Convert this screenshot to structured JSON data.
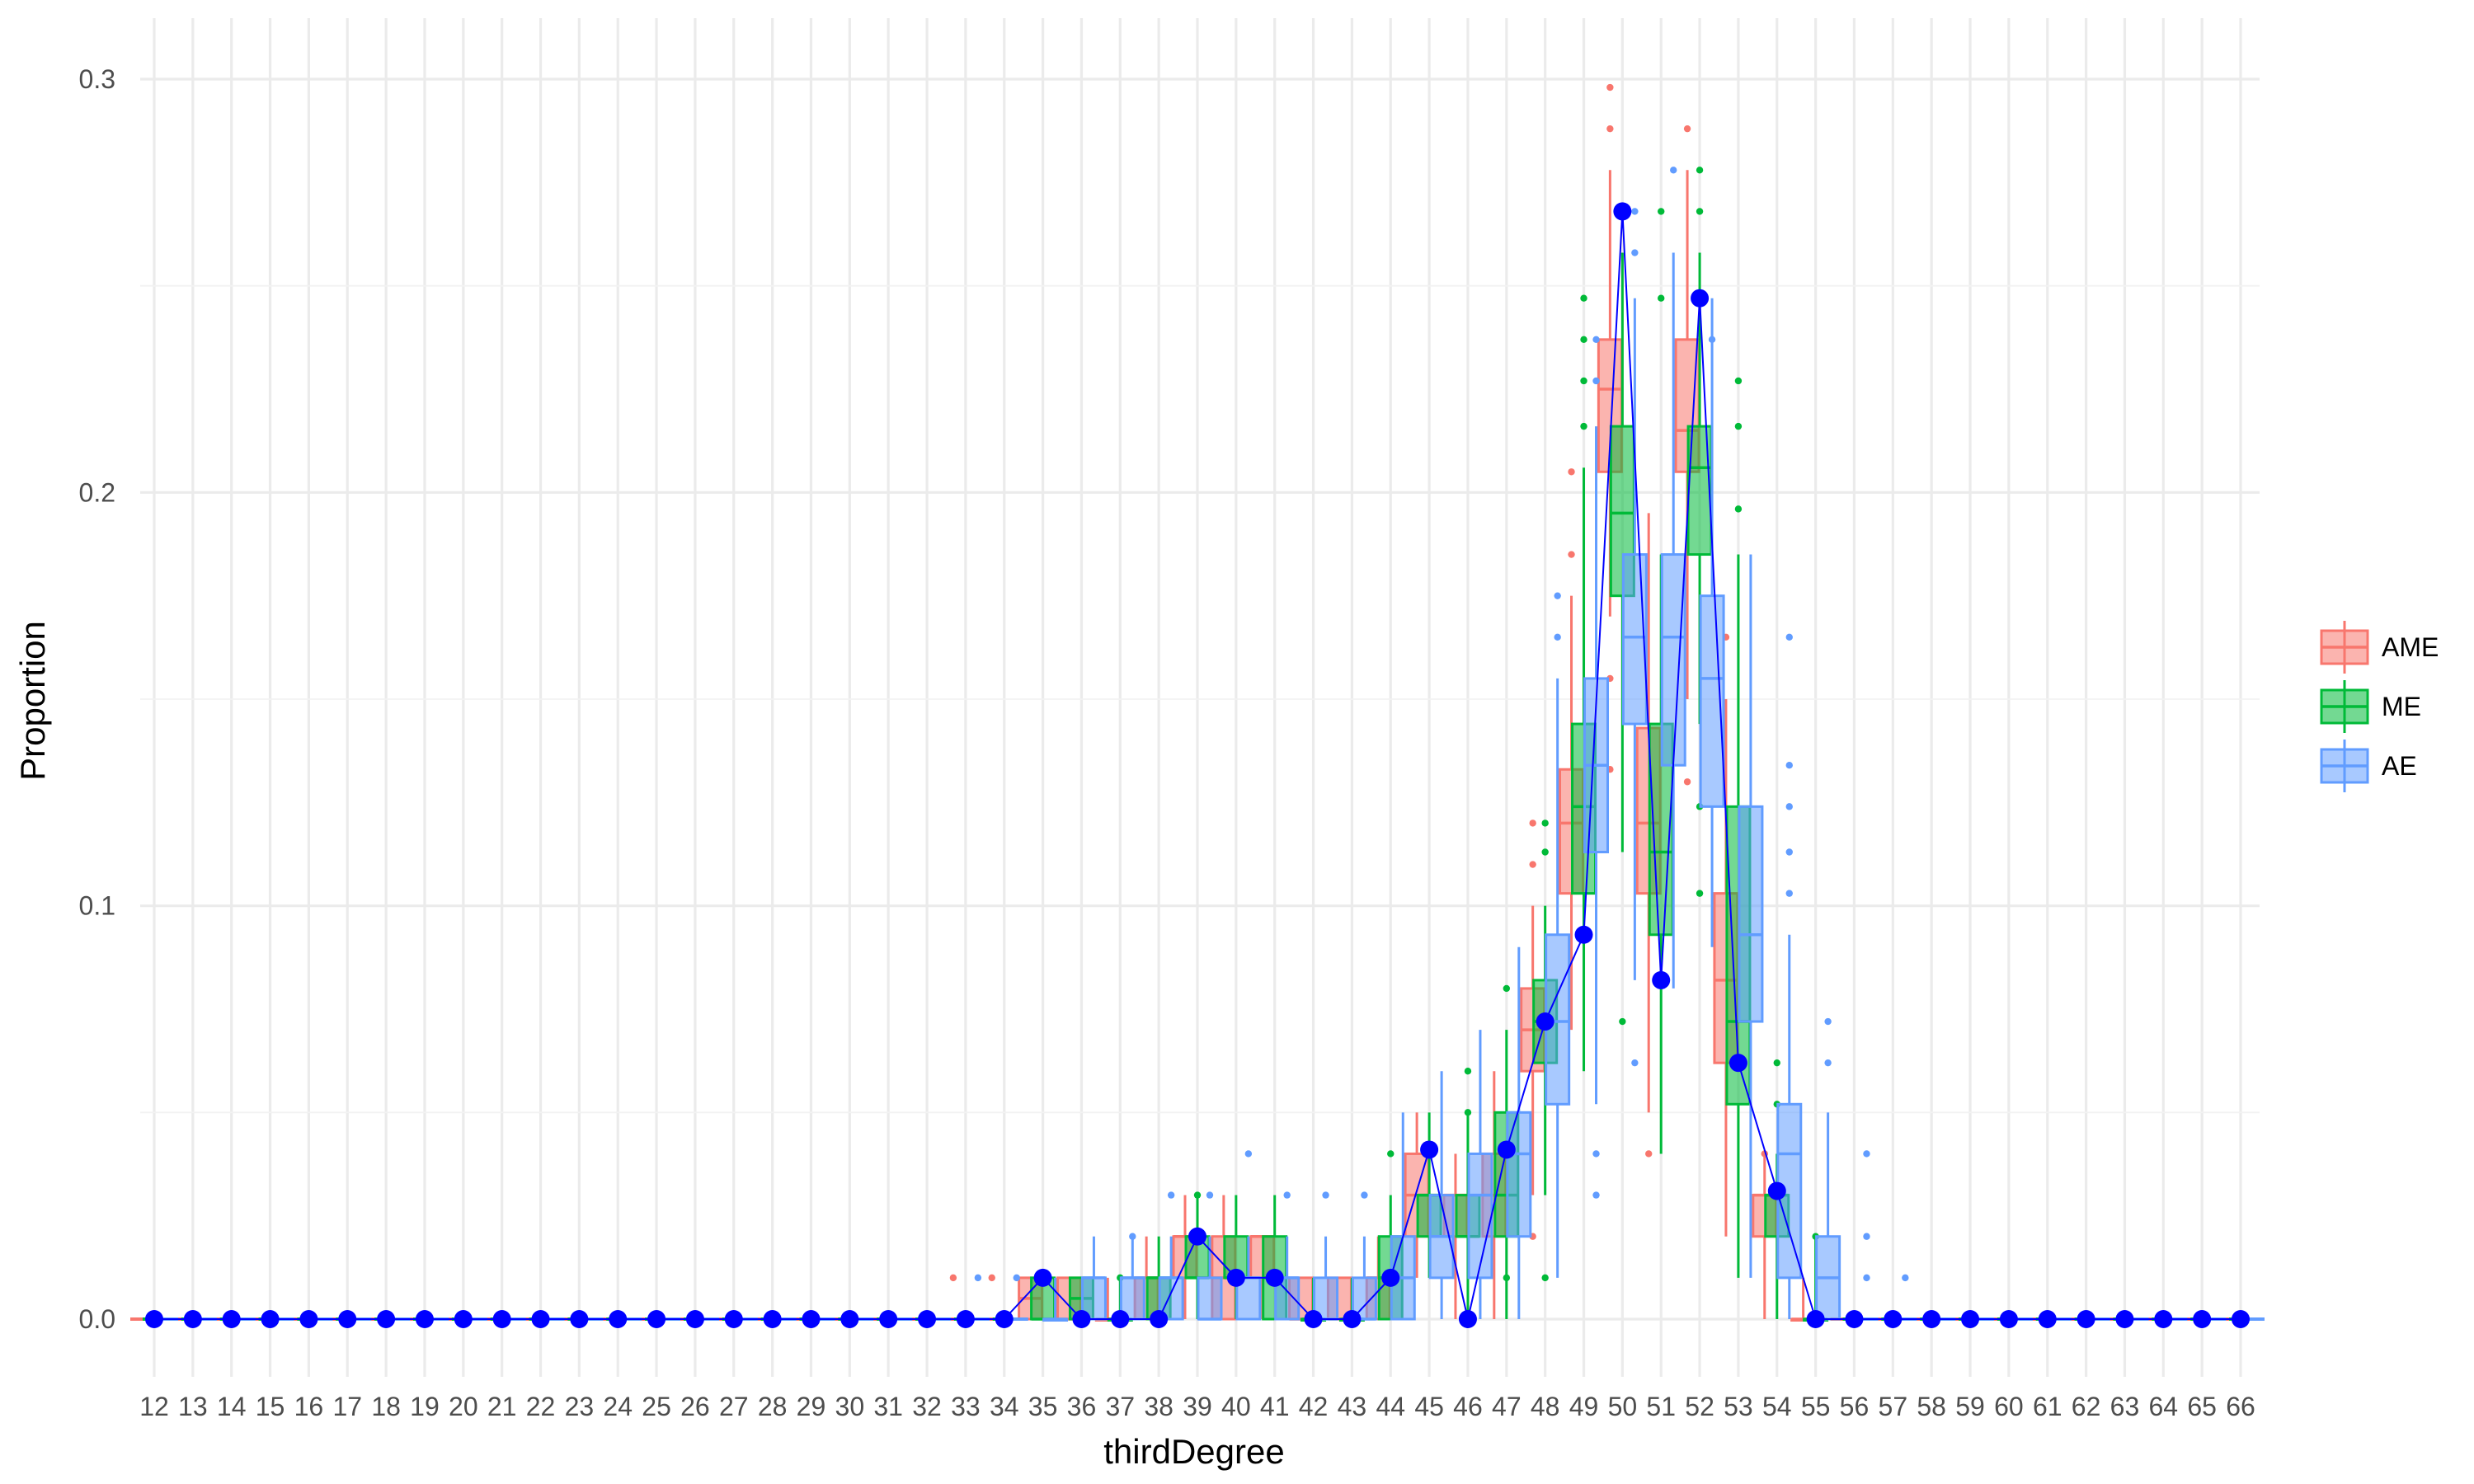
{
  "chart_data": {
    "type": "box",
    "xlabel": "thirdDegree",
    "ylabel": "Proportion",
    "x": [
      12,
      13,
      14,
      15,
      16,
      17,
      18,
      19,
      20,
      21,
      22,
      23,
      24,
      25,
      26,
      27,
      28,
      29,
      30,
      31,
      32,
      33,
      34,
      35,
      36,
      37,
      38,
      39,
      40,
      41,
      42,
      43,
      44,
      45,
      46,
      47,
      48,
      49,
      50,
      51,
      52,
      53,
      54,
      55,
      56,
      57,
      58,
      59,
      60,
      61,
      62,
      63,
      64,
      65,
      66
    ],
    "x_tick_labels": [
      "12",
      "13",
      "14",
      "15",
      "16",
      "17",
      "18",
      "19",
      "20",
      "21",
      "22",
      "23",
      "24",
      "25",
      "26",
      "27",
      "28",
      "29",
      "30",
      "31",
      "32",
      "33",
      "34",
      "35",
      "36",
      "37",
      "38",
      "39",
      "40",
      "41",
      "42",
      "43",
      "44",
      "45",
      "46",
      "47",
      "48",
      "49",
      "50",
      "51",
      "52",
      "53",
      "54",
      "55",
      "56",
      "57",
      "58",
      "59",
      "60",
      "61",
      "62",
      "63",
      "64",
      "65",
      "66"
    ],
    "y_ticks": [
      0.0,
      0.1,
      0.2,
      0.3
    ],
    "y_tick_labels": [
      "0.0",
      "0.1",
      "0.2",
      "0.3"
    ],
    "ylim": [
      -0.014,
      0.315
    ],
    "grid": true,
    "legend_position": "right",
    "legend_title": "",
    "series": [
      {
        "name": "AME",
        "color": "#F8766D",
        "boxes": {
          "35": [
            0,
            0,
            0.005,
            0.01,
            0.01
          ],
          "36": [
            0,
            0,
            0,
            0.01,
            0.01
          ],
          "37": [
            0,
            0,
            0,
            0,
            0.01
          ],
          "38": [
            0,
            0,
            0.01,
            0.01,
            0.02
          ],
          "39": [
            0,
            0.01,
            0.02,
            0.02,
            0.03
          ],
          "40": [
            0,
            0,
            0.01,
            0.02,
            0.03
          ],
          "41": [
            0,
            0.01,
            0.02,
            0.02,
            0.02
          ],
          "42": [
            0,
            0,
            0,
            0.01,
            0.01
          ],
          "43": [
            0,
            0,
            0,
            0.01,
            0.01
          ],
          "44": [
            0,
            0,
            0.01,
            0.01,
            0.02
          ],
          "45": [
            0.01,
            0.02,
            0.03,
            0.04,
            0.05
          ],
          "46": [
            0,
            0.02,
            0.03,
            0.03,
            0.04
          ],
          "47": [
            0,
            0.02,
            0.03,
            0.04,
            0.06
          ],
          "48": [
            0.03,
            0.06,
            0.07,
            0.08,
            0.1
          ],
          "49": [
            0.07,
            0.103,
            0.12,
            0.133,
            0.175
          ],
          "50": [
            0.17,
            0.205,
            0.225,
            0.237,
            0.278
          ],
          "51": [
            0.05,
            0.103,
            0.12,
            0.143,
            0.195
          ],
          "52": [
            0.15,
            0.205,
            0.215,
            0.237,
            0.278
          ],
          "53": [
            0.02,
            0.062,
            0.082,
            0.103,
            0.15
          ],
          "54": [
            0,
            0.02,
            0.03,
            0.03,
            0.04
          ],
          "55": [
            0,
            0,
            0,
            0,
            0.01
          ]
        },
        "outliers": {
          "33": [
            0.01
          ],
          "34": [
            0.01
          ],
          "48": [
            0.12,
            0.11,
            0.02
          ],
          "49": [
            0.205,
            0.185
          ],
          "50": [
            0.298,
            0.288,
            0.155,
            0.133
          ],
          "51": [
            0.04
          ],
          "52": [
            0.288,
            0.13
          ],
          "53": [
            0.165
          ],
          "54": [
            0.04
          ]
        }
      },
      {
        "name": "ME",
        "color": "#00BA38",
        "boxes": {
          "35": [
            0,
            0,
            0,
            0.01,
            0.01
          ],
          "36": [
            0,
            0,
            0.005,
            0.01,
            0.01
          ],
          "37": [
            0,
            0,
            0,
            0,
            0.01
          ],
          "38": [
            0,
            0,
            0.01,
            0.01,
            0.02
          ],
          "39": [
            0,
            0.01,
            0.01,
            0.02,
            0.03
          ],
          "40": [
            0,
            0.01,
            0.01,
            0.02,
            0.03
          ],
          "41": [
            0,
            0,
            0.01,
            0.02,
            0.03
          ],
          "42": [
            0,
            0,
            0,
            0,
            0.01
          ],
          "43": [
            0,
            0,
            0,
            0,
            0.01
          ],
          "44": [
            0,
            0,
            0.01,
            0.02,
            0.03
          ],
          "45": [
            0.01,
            0.02,
            0.03,
            0.03,
            0.05
          ],
          "46": [
            0,
            0.02,
            0.02,
            0.03,
            0.05
          ],
          "47": [
            0,
            0.02,
            0.03,
            0.05,
            0.07
          ],
          "48": [
            0.03,
            0.062,
            0.072,
            0.082,
            0.1
          ],
          "49": [
            0.06,
            0.103,
            0.124,
            0.144,
            0.206
          ],
          "50": [
            0.113,
            0.175,
            0.195,
            0.216,
            0.258
          ],
          "51": [
            0.04,
            0.093,
            0.113,
            0.144,
            0.185
          ],
          "52": [
            0.144,
            0.185,
            0.206,
            0.216,
            0.258
          ],
          "53": [
            0.01,
            0.052,
            0.072,
            0.124,
            0.185
          ],
          "54": [
            0,
            0.02,
            0.03,
            0.03,
            0.04
          ],
          "55": [
            0,
            0,
            0,
            0,
            0.02
          ]
        },
        "outliers": {
          "37": [
            0.01
          ],
          "39": [
            0.03
          ],
          "44": [
            0.04
          ],
          "46": [
            0.06,
            0.05
          ],
          "47": [
            0.08,
            0.01
          ],
          "48": [
            0.12,
            0.113,
            0.01
          ],
          "49": [
            0.247,
            0.237,
            0.227,
            0.216
          ],
          "50": [
            0.072
          ],
          "51": [
            0.268,
            0.247
          ],
          "52": [
            0.278,
            0.268,
            0.124,
            0.103
          ],
          "53": [
            0.227,
            0.216,
            0.196
          ],
          "54": [
            0.062,
            0.052
          ],
          "55": [
            0.02
          ]
        }
      },
      {
        "name": "AE",
        "color": "#619CFF",
        "boxes": {
          "35": [
            0,
            0,
            0,
            0,
            0.01
          ],
          "36": [
            0,
            0,
            0.01,
            0.01,
            0.02
          ],
          "37": [
            0,
            0,
            0.01,
            0.01,
            0.02
          ],
          "38": [
            0,
            0,
            0.01,
            0.01,
            0.02
          ],
          "39": [
            0,
            0,
            0,
            0.01,
            0.02
          ],
          "40": [
            0,
            0,
            0.01,
            0.01,
            0.02
          ],
          "41": [
            0,
            0,
            0.01,
            0.01,
            0.02
          ],
          "42": [
            0,
            0,
            0,
            0.01,
            0.02
          ],
          "43": [
            0,
            0,
            0,
            0.01,
            0.02
          ],
          "44": [
            0,
            0,
            0.01,
            0.02,
            0.05
          ],
          "45": [
            0,
            0.01,
            0.02,
            0.03,
            0.06
          ],
          "46": [
            0,
            0.01,
            0.03,
            0.04,
            0.07
          ],
          "47": [
            0,
            0.02,
            0.04,
            0.05,
            0.09
          ],
          "48": [
            0.01,
            0.052,
            0.072,
            0.093,
            0.155
          ],
          "49": [
            0.052,
            0.113,
            0.134,
            0.155,
            0.216
          ],
          "50": [
            0.082,
            0.144,
            0.165,
            0.185,
            0.247
          ],
          "51": [
            0.08,
            0.134,
            0.165,
            0.185,
            0.258
          ],
          "52": [
            0.09,
            0.124,
            0.155,
            0.175,
            0.247
          ],
          "53": [
            0.01,
            0.072,
            0.093,
            0.124,
            0.185
          ],
          "54": [
            0,
            0.01,
            0.04,
            0.052,
            0.093
          ],
          "55": [
            0,
            0,
            0.01,
            0.02,
            0.05
          ]
        },
        "outliers": {
          "33": [
            0.01
          ],
          "34": [
            0.01
          ],
          "37": [
            0.02
          ],
          "38": [
            0.03
          ],
          "39": [
            0.03
          ],
          "40": [
            0.04
          ],
          "41": [
            0.03
          ],
          "42": [
            0.03
          ],
          "43": [
            0.03
          ],
          "48": [
            0.175,
            0.165
          ],
          "49": [
            0.237,
            0.227,
            0.04,
            0.03
          ],
          "50": [
            0.268,
            0.258,
            0.062
          ],
          "51": [
            0.278
          ],
          "52": [
            0.237
          ],
          "54": [
            0.165,
            0.134,
            0.124,
            0.113,
            0.103
          ],
          "55": [
            0.072,
            0.062
          ],
          "56": [
            0.04,
            0.02,
            0.01
          ],
          "57": [
            0.01
          ]
        }
      }
    ],
    "overlay": {
      "color": "#0000FF",
      "x": [
        12,
        13,
        14,
        15,
        16,
        17,
        18,
        19,
        20,
        21,
        22,
        23,
        24,
        25,
        26,
        27,
        28,
        29,
        30,
        31,
        32,
        33,
        34,
        35,
        36,
        37,
        38,
        39,
        40,
        41,
        42,
        43,
        44,
        45,
        46,
        47,
        48,
        49,
        50,
        51,
        52,
        53,
        54,
        55,
        56,
        57,
        58,
        59,
        60,
        61,
        62,
        63,
        64,
        65,
        66
      ],
      "y": [
        0,
        0,
        0,
        0,
        0,
        0,
        0,
        0,
        0,
        0,
        0,
        0,
        0,
        0,
        0,
        0,
        0,
        0,
        0,
        0,
        0,
        0,
        0,
        0.01,
        0,
        0,
        0,
        0.02,
        0.01,
        0.01,
        0,
        0,
        0.01,
        0.041,
        0,
        0.041,
        0.072,
        0.093,
        0.268,
        0.082,
        0.247,
        0.062,
        0.031,
        0,
        0,
        0,
        0,
        0,
        0,
        0,
        0,
        0,
        0,
        0,
        0
      ]
    }
  }
}
